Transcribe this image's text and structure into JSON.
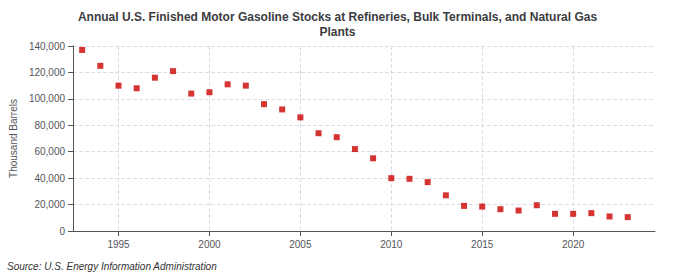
{
  "chart_data": {
    "type": "scatter",
    "title": "Annual U.S. Finished Motor Gasoline Stocks at Refineries, Bulk Terminals, and Natural Gas\nPlants",
    "ylabel": "Thousand Barrels",
    "annotation": "Source: U.S. Energy Information Administration",
    "color": "#cc0000",
    "marker": "square",
    "grid": true,
    "xlim": [
      1992.5,
      2024.5
    ],
    "xticks": [
      1995,
      2000,
      2005,
      2010,
      2015,
      2020
    ],
    "ylim": [
      0,
      140000
    ],
    "yticks": [
      0,
      {
        "value": 20000,
        "label": "20,000"
      },
      {
        "value": 40000,
        "label": "40,000"
      },
      {
        "value": 60000,
        "label": "60,000"
      },
      {
        "value": 80000,
        "label": "80,000"
      },
      {
        "value": 100000,
        "label": "100,000"
      },
      {
        "value": 120000,
        "label": "120,000"
      },
      {
        "value": 140000,
        "label": "140,000"
      }
    ],
    "x": [
      1993,
      1994,
      1995,
      1996,
      1997,
      1998,
      1999,
      2000,
      2001,
      2002,
      2003,
      2004,
      2005,
      2006,
      2007,
      2008,
      2009,
      2010,
      2011,
      2012,
      2013,
      2014,
      2015,
      2016,
      2017,
      2018,
      2019,
      2020,
      2021,
      2022,
      2023
    ],
    "values": [
      137000,
      125000,
      110000,
      108000,
      116000,
      121000,
      104000,
      105000,
      111000,
      110000,
      96000,
      92000,
      86000,
      74000,
      71000,
      62000,
      55000,
      40000,
      39500,
      37000,
      27000,
      19000,
      18500,
      16500,
      15500,
      19500,
      13000,
      13000,
      13500,
      11000,
      10500
    ]
  }
}
